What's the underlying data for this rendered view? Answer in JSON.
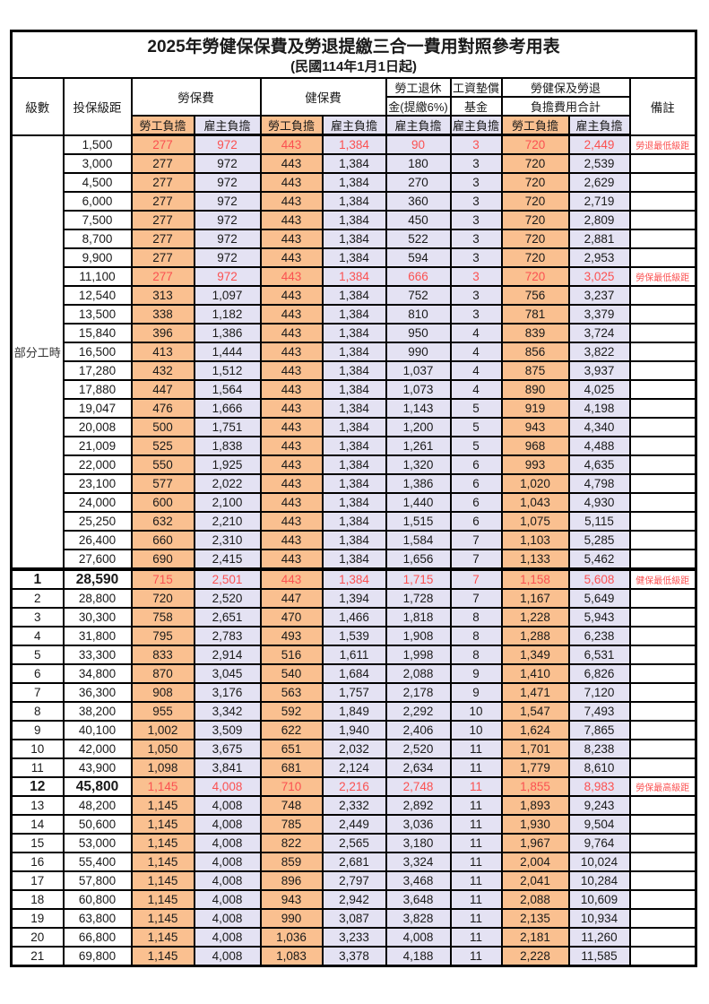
{
  "title": "2025年勞健保保費及勞退提繳三合一費用對照參考用表",
  "subtitle": "(民國114年1月1日起)",
  "header": {
    "level_label": "級數",
    "bracket_label": "投保級距",
    "labor_insurance_label": "勞保費",
    "health_insurance_label": "健保費",
    "pension_line1": "勞工退休",
    "pension_line2": "金(提繳6%)",
    "wage_arrears_line1": "工資墊償",
    "wage_arrears_line2": "基金",
    "total_line1": "勞健保及勞退",
    "total_line2": "負擔費用合計",
    "remark_label": "備註",
    "employee_label": "勞工負擔",
    "employer_label": "雇主負擔"
  },
  "part_time_label": "部分工時",
  "part_time_row_count": 23,
  "colors": {
    "employee_column_bg": "#FAC090",
    "employer_column_bg": "#E4E2F3",
    "highlight_red": "#FB5151",
    "border": "#000000",
    "background": "#FFFFFF"
  },
  "remarks_legend": {
    "pension_min": "勞退最低級距",
    "labor_min": "勞保最低級距",
    "health_min": "健保最低級距",
    "labor_max": "勞保最高級距"
  },
  "rows": [
    {
      "level": null,
      "bracket": "1,500",
      "values": [
        "277",
        "972",
        "443",
        "1,384",
        "90",
        "3",
        "720",
        "2,449"
      ],
      "remark": "勞退最低級距",
      "red": true,
      "bold": false,
      "section": false
    },
    {
      "level": null,
      "bracket": "3,000",
      "values": [
        "277",
        "972",
        "443",
        "1,384",
        "180",
        "3",
        "720",
        "2,539"
      ],
      "remark": "",
      "red": false,
      "bold": false,
      "section": false
    },
    {
      "level": null,
      "bracket": "4,500",
      "values": [
        "277",
        "972",
        "443",
        "1,384",
        "270",
        "3",
        "720",
        "2,629"
      ],
      "remark": "",
      "red": false,
      "bold": false,
      "section": false
    },
    {
      "level": null,
      "bracket": "6,000",
      "values": [
        "277",
        "972",
        "443",
        "1,384",
        "360",
        "3",
        "720",
        "2,719"
      ],
      "remark": "",
      "red": false,
      "bold": false,
      "section": false
    },
    {
      "level": null,
      "bracket": "7,500",
      "values": [
        "277",
        "972",
        "443",
        "1,384",
        "450",
        "3",
        "720",
        "2,809"
      ],
      "remark": "",
      "red": false,
      "bold": false,
      "section": false
    },
    {
      "level": null,
      "bracket": "8,700",
      "values": [
        "277",
        "972",
        "443",
        "1,384",
        "522",
        "3",
        "720",
        "2,881"
      ],
      "remark": "",
      "red": false,
      "bold": false,
      "section": false
    },
    {
      "level": null,
      "bracket": "9,900",
      "values": [
        "277",
        "972",
        "443",
        "1,384",
        "594",
        "3",
        "720",
        "2,953"
      ],
      "remark": "",
      "red": false,
      "bold": false,
      "section": false
    },
    {
      "level": null,
      "bracket": "11,100",
      "values": [
        "277",
        "972",
        "443",
        "1,384",
        "666",
        "3",
        "720",
        "3,025"
      ],
      "remark": "勞保最低級距",
      "red": true,
      "bold": false,
      "section": false
    },
    {
      "level": null,
      "bracket": "12,540",
      "values": [
        "313",
        "1,097",
        "443",
        "1,384",
        "752",
        "3",
        "756",
        "3,237"
      ],
      "remark": "",
      "red": false,
      "bold": false,
      "section": false
    },
    {
      "level": null,
      "bracket": "13,500",
      "values": [
        "338",
        "1,182",
        "443",
        "1,384",
        "810",
        "3",
        "781",
        "3,379"
      ],
      "remark": "",
      "red": false,
      "bold": false,
      "section": false
    },
    {
      "level": null,
      "bracket": "15,840",
      "values": [
        "396",
        "1,386",
        "443",
        "1,384",
        "950",
        "4",
        "839",
        "3,724"
      ],
      "remark": "",
      "red": false,
      "bold": false,
      "section": false
    },
    {
      "level": null,
      "bracket": "16,500",
      "values": [
        "413",
        "1,444",
        "443",
        "1,384",
        "990",
        "4",
        "856",
        "3,822"
      ],
      "remark": "",
      "red": false,
      "bold": false,
      "section": false
    },
    {
      "level": null,
      "bracket": "17,280",
      "values": [
        "432",
        "1,512",
        "443",
        "1,384",
        "1,037",
        "4",
        "875",
        "3,937"
      ],
      "remark": "",
      "red": false,
      "bold": false,
      "section": false
    },
    {
      "level": null,
      "bracket": "17,880",
      "values": [
        "447",
        "1,564",
        "443",
        "1,384",
        "1,073",
        "4",
        "890",
        "4,025"
      ],
      "remark": "",
      "red": false,
      "bold": false,
      "section": false
    },
    {
      "level": null,
      "bracket": "19,047",
      "values": [
        "476",
        "1,666",
        "443",
        "1,384",
        "1,143",
        "5",
        "919",
        "4,198"
      ],
      "remark": "",
      "red": false,
      "bold": false,
      "section": false
    },
    {
      "level": null,
      "bracket": "20,008",
      "values": [
        "500",
        "1,751",
        "443",
        "1,384",
        "1,200",
        "5",
        "943",
        "4,340"
      ],
      "remark": "",
      "red": false,
      "bold": false,
      "section": false
    },
    {
      "level": null,
      "bracket": "21,009",
      "values": [
        "525",
        "1,838",
        "443",
        "1,384",
        "1,261",
        "5",
        "968",
        "4,488"
      ],
      "remark": "",
      "red": false,
      "bold": false,
      "section": false
    },
    {
      "level": null,
      "bracket": "22,000",
      "values": [
        "550",
        "1,925",
        "443",
        "1,384",
        "1,320",
        "6",
        "993",
        "4,635"
      ],
      "remark": "",
      "red": false,
      "bold": false,
      "section": false
    },
    {
      "level": null,
      "bracket": "23,100",
      "values": [
        "577",
        "2,022",
        "443",
        "1,384",
        "1,386",
        "6",
        "1,020",
        "4,798"
      ],
      "remark": "",
      "red": false,
      "bold": false,
      "section": false
    },
    {
      "level": null,
      "bracket": "24,000",
      "values": [
        "600",
        "2,100",
        "443",
        "1,384",
        "1,440",
        "6",
        "1,043",
        "4,930"
      ],
      "remark": "",
      "red": false,
      "bold": false,
      "section": false
    },
    {
      "level": null,
      "bracket": "25,250",
      "values": [
        "632",
        "2,210",
        "443",
        "1,384",
        "1,515",
        "6",
        "1,075",
        "5,115"
      ],
      "remark": "",
      "red": false,
      "bold": false,
      "section": false
    },
    {
      "level": null,
      "bracket": "26,400",
      "values": [
        "660",
        "2,310",
        "443",
        "1,384",
        "1,584",
        "7",
        "1,103",
        "5,285"
      ],
      "remark": "",
      "red": false,
      "bold": false,
      "section": false
    },
    {
      "level": null,
      "bracket": "27,600",
      "values": [
        "690",
        "2,415",
        "443",
        "1,384",
        "1,656",
        "7",
        "1,133",
        "5,462"
      ],
      "remark": "",
      "red": false,
      "bold": false,
      "section": false
    },
    {
      "level": "1",
      "bracket": "28,590",
      "values": [
        "715",
        "2,501",
        "443",
        "1,384",
        "1,715",
        "7",
        "1,158",
        "5,608"
      ],
      "remark": "健保最低級距",
      "red": true,
      "bold": true,
      "section": true
    },
    {
      "level": "2",
      "bracket": "28,800",
      "values": [
        "720",
        "2,520",
        "447",
        "1,394",
        "1,728",
        "7",
        "1,167",
        "5,649"
      ],
      "remark": "",
      "red": false,
      "bold": false,
      "section": false
    },
    {
      "level": "3",
      "bracket": "30,300",
      "values": [
        "758",
        "2,651",
        "470",
        "1,466",
        "1,818",
        "8",
        "1,228",
        "5,943"
      ],
      "remark": "",
      "red": false,
      "bold": false,
      "section": false
    },
    {
      "level": "4",
      "bracket": "31,800",
      "values": [
        "795",
        "2,783",
        "493",
        "1,539",
        "1,908",
        "8",
        "1,288",
        "6,238"
      ],
      "remark": "",
      "red": false,
      "bold": false,
      "section": false
    },
    {
      "level": "5",
      "bracket": "33,300",
      "values": [
        "833",
        "2,914",
        "516",
        "1,611",
        "1,998",
        "8",
        "1,349",
        "6,531"
      ],
      "remark": "",
      "red": false,
      "bold": false,
      "section": false
    },
    {
      "level": "6",
      "bracket": "34,800",
      "values": [
        "870",
        "3,045",
        "540",
        "1,684",
        "2,088",
        "9",
        "1,410",
        "6,826"
      ],
      "remark": "",
      "red": false,
      "bold": false,
      "section": false
    },
    {
      "level": "7",
      "bracket": "36,300",
      "values": [
        "908",
        "3,176",
        "563",
        "1,757",
        "2,178",
        "9",
        "1,471",
        "7,120"
      ],
      "remark": "",
      "red": false,
      "bold": false,
      "section": false
    },
    {
      "level": "8",
      "bracket": "38,200",
      "values": [
        "955",
        "3,342",
        "592",
        "1,849",
        "2,292",
        "10",
        "1,547",
        "7,493"
      ],
      "remark": "",
      "red": false,
      "bold": false,
      "section": false
    },
    {
      "level": "9",
      "bracket": "40,100",
      "values": [
        "1,002",
        "3,509",
        "622",
        "1,940",
        "2,406",
        "10",
        "1,624",
        "7,865"
      ],
      "remark": "",
      "red": false,
      "bold": false,
      "section": false
    },
    {
      "level": "10",
      "bracket": "42,000",
      "values": [
        "1,050",
        "3,675",
        "651",
        "2,032",
        "2,520",
        "11",
        "1,701",
        "8,238"
      ],
      "remark": "",
      "red": false,
      "bold": false,
      "section": false
    },
    {
      "level": "11",
      "bracket": "43,900",
      "values": [
        "1,098",
        "3,841",
        "681",
        "2,124",
        "2,634",
        "11",
        "1,779",
        "8,610"
      ],
      "remark": "",
      "red": false,
      "bold": false,
      "section": false
    },
    {
      "level": "12",
      "bracket": "45,800",
      "values": [
        "1,145",
        "4,008",
        "710",
        "2,216",
        "2,748",
        "11",
        "1,855",
        "8,983"
      ],
      "remark": "勞保最高級距",
      "red": true,
      "bold": true,
      "section": false
    },
    {
      "level": "13",
      "bracket": "48,200",
      "values": [
        "1,145",
        "4,008",
        "748",
        "2,332",
        "2,892",
        "11",
        "1,893",
        "9,243"
      ],
      "remark": "",
      "red": false,
      "bold": false,
      "section": false
    },
    {
      "level": "14",
      "bracket": "50,600",
      "values": [
        "1,145",
        "4,008",
        "785",
        "2,449",
        "3,036",
        "11",
        "1,930",
        "9,504"
      ],
      "remark": "",
      "red": false,
      "bold": false,
      "section": false
    },
    {
      "level": "15",
      "bracket": "53,000",
      "values": [
        "1,145",
        "4,008",
        "822",
        "2,565",
        "3,180",
        "11",
        "1,967",
        "9,764"
      ],
      "remark": "",
      "red": false,
      "bold": false,
      "section": false
    },
    {
      "level": "16",
      "bracket": "55,400",
      "values": [
        "1,145",
        "4,008",
        "859",
        "2,681",
        "3,324",
        "11",
        "2,004",
        "10,024"
      ],
      "remark": "",
      "red": false,
      "bold": false,
      "section": false
    },
    {
      "level": "17",
      "bracket": "57,800",
      "values": [
        "1,145",
        "4,008",
        "896",
        "2,797",
        "3,468",
        "11",
        "2,041",
        "10,284"
      ],
      "remark": "",
      "red": false,
      "bold": false,
      "section": false
    },
    {
      "level": "18",
      "bracket": "60,800",
      "values": [
        "1,145",
        "4,008",
        "943",
        "2,942",
        "3,648",
        "11",
        "2,088",
        "10,609"
      ],
      "remark": "",
      "red": false,
      "bold": false,
      "section": false
    },
    {
      "level": "19",
      "bracket": "63,800",
      "values": [
        "1,145",
        "4,008",
        "990",
        "3,087",
        "3,828",
        "11",
        "2,135",
        "10,934"
      ],
      "remark": "",
      "red": false,
      "bold": false,
      "section": false
    },
    {
      "level": "20",
      "bracket": "66,800",
      "values": [
        "1,145",
        "4,008",
        "1,036",
        "3,233",
        "4,008",
        "11",
        "2,181",
        "11,260"
      ],
      "remark": "",
      "red": false,
      "bold": false,
      "section": false
    },
    {
      "level": "21",
      "bracket": "69,800",
      "values": [
        "1,145",
        "4,008",
        "1,083",
        "3,378",
        "4,188",
        "11",
        "2,228",
        "11,585"
      ],
      "remark": "",
      "red": false,
      "bold": false,
      "section": false
    }
  ]
}
